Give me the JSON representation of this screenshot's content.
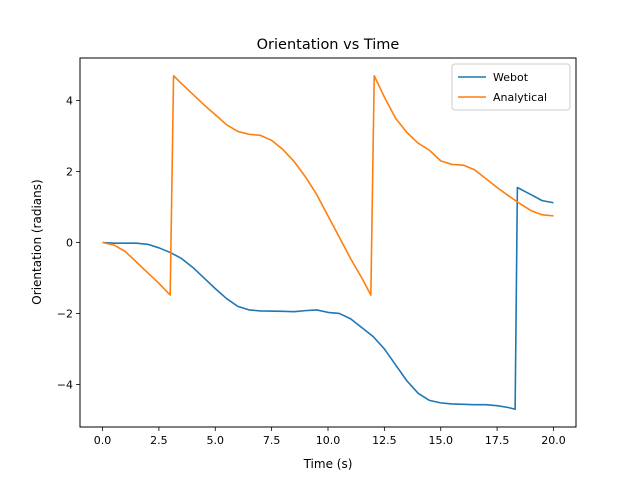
{
  "chart_data": {
    "type": "line",
    "title": "Orientation vs Time",
    "xlabel": "Time (s)",
    "ylabel": "Orientation (radians)",
    "xlim": [
      -1.0,
      21.0
    ],
    "ylim": [
      -5.2,
      5.2
    ],
    "xticks": [
      0.0,
      2.5,
      5.0,
      7.5,
      10.0,
      12.5,
      15.0,
      17.5,
      20.0
    ],
    "xtick_labels": [
      "0.0",
      "2.5",
      "5.0",
      "7.5",
      "10.0",
      "12.5",
      "15.0",
      "17.5",
      "20.0"
    ],
    "yticks": [
      -4,
      -2,
      0,
      2,
      4
    ],
    "ytick_labels": [
      "−4",
      "−2",
      "0",
      "2",
      "4"
    ],
    "grid": false,
    "legend_position": "top-right",
    "series": [
      {
        "name": "Webot",
        "color": "#1f77b4",
        "points": [
          [
            0.0,
            0.0
          ],
          [
            0.5,
            -0.02
          ],
          [
            1.0,
            -0.02
          ],
          [
            1.5,
            -0.02
          ],
          [
            2.0,
            -0.05
          ],
          [
            2.5,
            -0.15
          ],
          [
            3.0,
            -0.28
          ],
          [
            3.5,
            -0.45
          ],
          [
            4.0,
            -0.7
          ],
          [
            4.5,
            -1.0
          ],
          [
            5.0,
            -1.3
          ],
          [
            5.5,
            -1.58
          ],
          [
            6.0,
            -1.8
          ],
          [
            6.5,
            -1.9
          ],
          [
            7.0,
            -1.93
          ],
          [
            8.0,
            -1.94
          ],
          [
            8.5,
            -1.95
          ],
          [
            9.0,
            -1.92
          ],
          [
            9.5,
            -1.9
          ],
          [
            10.0,
            -1.97
          ],
          [
            10.5,
            -2.0
          ],
          [
            11.0,
            -2.15
          ],
          [
            11.5,
            -2.4
          ],
          [
            12.0,
            -2.65
          ],
          [
            12.5,
            -3.0
          ],
          [
            13.0,
            -3.45
          ],
          [
            13.5,
            -3.9
          ],
          [
            14.0,
            -4.25
          ],
          [
            14.5,
            -4.45
          ],
          [
            15.0,
            -4.52
          ],
          [
            15.5,
            -4.55
          ],
          [
            16.0,
            -4.56
          ],
          [
            16.5,
            -4.57
          ],
          [
            17.0,
            -4.57
          ],
          [
            17.5,
            -4.6
          ],
          [
            18.0,
            -4.65
          ],
          [
            18.3,
            -4.7
          ],
          [
            18.4,
            1.55
          ],
          [
            18.7,
            1.45
          ],
          [
            19.0,
            1.35
          ],
          [
            19.5,
            1.18
          ],
          [
            20.0,
            1.12
          ]
        ]
      },
      {
        "name": "Analytical",
        "color": "#ff7f0e",
        "points": [
          [
            0.0,
            0.0
          ],
          [
            0.5,
            -0.07
          ],
          [
            1.0,
            -0.25
          ],
          [
            1.5,
            -0.55
          ],
          [
            2.0,
            -0.85
          ],
          [
            2.5,
            -1.15
          ],
          [
            3.0,
            -1.48
          ],
          [
            3.15,
            4.7
          ],
          [
            3.5,
            4.48
          ],
          [
            4.0,
            4.18
          ],
          [
            4.5,
            3.88
          ],
          [
            5.0,
            3.6
          ],
          [
            5.5,
            3.32
          ],
          [
            6.0,
            3.13
          ],
          [
            6.5,
            3.05
          ],
          [
            7.0,
            3.02
          ],
          [
            7.5,
            2.88
          ],
          [
            8.0,
            2.62
          ],
          [
            8.5,
            2.28
          ],
          [
            9.0,
            1.85
          ],
          [
            9.5,
            1.35
          ],
          [
            10.0,
            0.75
          ],
          [
            10.5,
            0.15
          ],
          [
            11.0,
            -0.45
          ],
          [
            11.5,
            -1.0
          ],
          [
            11.9,
            -1.48
          ],
          [
            12.05,
            4.7
          ],
          [
            12.5,
            4.1
          ],
          [
            13.0,
            3.5
          ],
          [
            13.5,
            3.1
          ],
          [
            14.0,
            2.8
          ],
          [
            14.5,
            2.6
          ],
          [
            15.0,
            2.3
          ],
          [
            15.5,
            2.2
          ],
          [
            16.0,
            2.18
          ],
          [
            16.5,
            2.05
          ],
          [
            17.0,
            1.8
          ],
          [
            17.5,
            1.55
          ],
          [
            18.0,
            1.32
          ],
          [
            18.5,
            1.1
          ],
          [
            19.0,
            0.9
          ],
          [
            19.5,
            0.78
          ],
          [
            20.0,
            0.75
          ]
        ]
      }
    ]
  }
}
